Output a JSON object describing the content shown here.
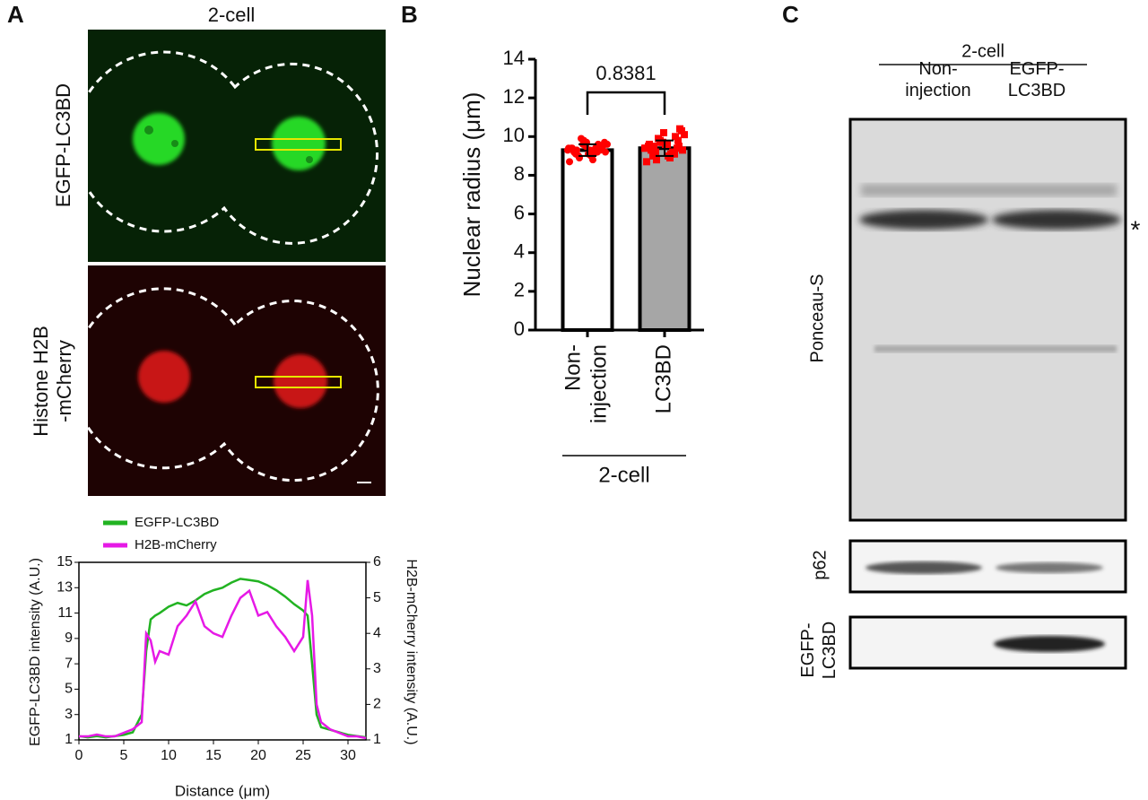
{
  "figure": {
    "panel_labels": [
      "A",
      "B",
      "C"
    ]
  },
  "panel_a": {
    "title": "2-cell",
    "row_labels": [
      "EGFP-LC3BD",
      "Histone H2B\n-mCherry"
    ]
  },
  "panel_c": {
    "header": "2-cell",
    "lanes": [
      "Non-\ninjection",
      "EGFP-\nLC3BD"
    ],
    "blots": [
      {
        "label": "Ponceau-S",
        "mark": "*"
      },
      {
        "label": "p62"
      },
      {
        "label": "EGFP-\nLC3BD"
      }
    ]
  },
  "chart_data": [
    {
      "type": "bar",
      "ylabel": "Nuclear  radius (μm)",
      "categories": [
        "Non-\ninjection",
        "LC3BD"
      ],
      "values": [
        9.3,
        9.4
      ],
      "errors": [
        0.3,
        0.4
      ],
      "colors": [
        "#ffffff",
        "#a6a6a6"
      ],
      "point_color": "#ff0000",
      "points": [
        [
          9.3,
          9.5,
          9.1,
          9.7,
          8.9,
          9.4,
          9.2,
          9.6,
          9.0,
          9.8,
          9.3,
          8.7,
          9.5,
          9.4,
          9.1,
          9.9,
          9.2,
          9.6,
          9.3,
          8.8,
          9.5,
          9.0,
          9.4,
          9.7,
          9.2,
          9.3,
          9.6,
          9.1,
          9.4,
          9.5
        ],
        [
          9.4,
          9.8,
          9.1,
          10.2,
          8.8,
          9.6,
          9.3,
          10.0,
          9.0,
          9.7,
          9.5,
          8.7,
          10.4,
          9.2,
          9.6,
          9.9,
          9.3,
          10.1,
          9.4,
          8.9,
          9.7,
          9.2,
          9.5,
          10.3,
          9.1,
          9.6,
          9.8,
          9.0,
          9.4,
          9.5
        ]
      ],
      "annotation": "0.8381",
      "group_label": "2-cell",
      "ylim": [
        0,
        14
      ],
      "yticks": [
        0,
        2,
        4,
        6,
        8,
        10,
        12,
        14
      ]
    },
    {
      "type": "line",
      "xlabel": "Distance (μm)",
      "ylabel": "EGFP-LC3BD intensity (A.U.)",
      "y2label": "H2B-mCherry intensity (A.U.)",
      "x": [
        0,
        1,
        2,
        3,
        4,
        5,
        6,
        7,
        7.5,
        8,
        8.5,
        9,
        10,
        11,
        12,
        13,
        14,
        15,
        16,
        17,
        18,
        19,
        20,
        21,
        22,
        23,
        24,
        25,
        25.5,
        26,
        26.5,
        27,
        28,
        29,
        30,
        31,
        32
      ],
      "series": [
        {
          "name": "EGFP-LC3BD",
          "color": "#22b322",
          "values": [
            1.3,
            1.2,
            1.3,
            1.2,
            1.3,
            1.4,
            1.6,
            3,
            8,
            10.5,
            10.8,
            11,
            11.5,
            11.8,
            11.6,
            12,
            12.5,
            12.8,
            13,
            13.4,
            13.7,
            13.6,
            13.5,
            13.2,
            12.8,
            12.3,
            11.7,
            11.2,
            10.8,
            7,
            3,
            2,
            1.8,
            1.6,
            1.4,
            1.3,
            1.2
          ]
        },
        {
          "name": "H2B-mCherry",
          "color": "#e619e6",
          "axis": "y2",
          "values": [
            1.1,
            1.1,
            1.15,
            1.1,
            1.1,
            1.2,
            1.3,
            1.5,
            4,
            3.8,
            3.2,
            3.5,
            3.4,
            4.2,
            4.5,
            4.9,
            4.2,
            4.0,
            3.9,
            4.5,
            5.0,
            5.2,
            4.5,
            4.6,
            4.2,
            3.9,
            3.5,
            3.9,
            5.5,
            4.5,
            2.0,
            1.5,
            1.3,
            1.2,
            1.1,
            1.1,
            1.05
          ]
        }
      ],
      "xlim": [
        0,
        32
      ],
      "xticks": [
        0,
        5,
        10,
        15,
        20,
        25,
        30
      ],
      "ylim": [
        1,
        15
      ],
      "yticks": [
        1,
        3,
        5,
        7,
        9,
        11,
        13,
        15
      ],
      "y2lim": [
        1,
        6
      ],
      "y2ticks": [
        1,
        2,
        3,
        4,
        5,
        6
      ]
    }
  ]
}
